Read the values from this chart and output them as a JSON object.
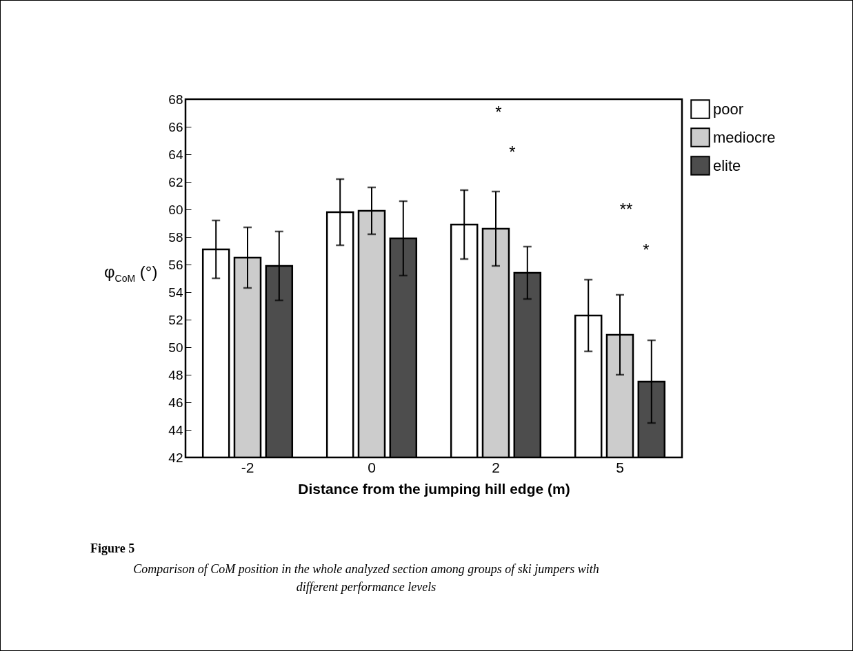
{
  "chart_data": {
    "type": "bar",
    "xlabel": "Distance from the jumping hill edge (m)",
    "ylabel": "φ$_{CoM}$ (°)",
    "categories": [
      "-2",
      "0",
      "2",
      "5"
    ],
    "series": [
      {
        "name": "poor",
        "color": "#ffffff",
        "values": [
          57.1,
          59.8,
          58.9,
          52.3
        ],
        "errors": [
          2.1,
          2.4,
          2.5,
          2.6
        ]
      },
      {
        "name": "mediocre",
        "color": "#cccccc",
        "values": [
          56.5,
          59.9,
          58.6,
          50.9
        ],
        "errors": [
          2.2,
          1.7,
          2.7,
          2.9
        ]
      },
      {
        "name": "elite",
        "color": "#4d4d4d",
        "values": [
          55.9,
          57.9,
          55.4,
          47.5
        ],
        "errors": [
          2.5,
          2.7,
          1.9,
          3.0
        ]
      }
    ],
    "ylim": [
      42,
      68
    ],
    "yticks": [
      42,
      44,
      46,
      48,
      50,
      52,
      54,
      56,
      58,
      60,
      62,
      64,
      66,
      68
    ],
    "grid": false,
    "legend": "top right",
    "annotations": [
      "*",
      "*",
      "**",
      "*",
      "Figure 5",
      "Comparison of CoM position in the whole analyzed section among groups of ski jumpers with different performance levels"
    ]
  }
}
